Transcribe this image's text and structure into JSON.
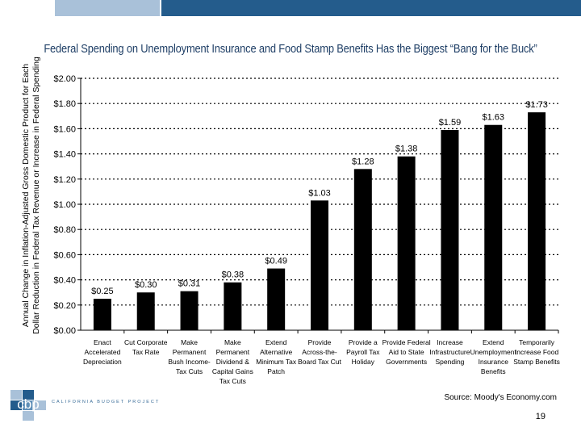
{
  "chart_data": {
    "type": "bar",
    "title": "Federal Spending on Unemployment Insurance and Food Stamp Benefits Has the Biggest “Bang for the Buck”",
    "ylabel_line1": "Annual Change in Inflation-Adjusted Gross Domestic Product for Each",
    "ylabel_line2": "Dollar Reduction in Federal Tax Revenue or Increase in Federal Spending",
    "xlabel": "",
    "ylim": [
      0,
      2.0
    ],
    "yticks": [
      "$0.00",
      "$0.20",
      "$0.40",
      "$0.60",
      "$0.80",
      "$1.00",
      "$1.20",
      "$1.40",
      "$1.60",
      "$1.80",
      "$2.00"
    ],
    "grid": true,
    "categories": [
      [
        "Enact",
        "Accelerated",
        "Depreciation"
      ],
      [
        "Cut Corporate",
        "Tax Rate"
      ],
      [
        "Make",
        "Permanent",
        "Bush Income-",
        "Tax Cuts"
      ],
      [
        "Make",
        "Permanent",
        "Dividend &",
        "Capital Gains",
        "Tax Cuts"
      ],
      [
        "Extend",
        "Alternative",
        "Minimum Tax",
        "Patch"
      ],
      [
        "Provide",
        "Across-the-",
        "Board Tax Cut"
      ],
      [
        "Provide a",
        "Payroll Tax",
        "Holiday"
      ],
      [
        "Provide Federal",
        "Aid to State",
        "Governments"
      ],
      [
        "Increase",
        "Infrastructure",
        "Spending"
      ],
      [
        "Extend",
        "Unemployment",
        "Insurance",
        "Benefits"
      ],
      [
        "Temporarily",
        "Increase Food",
        "Stamp Benefits"
      ]
    ],
    "values": [
      0.25,
      0.3,
      0.31,
      0.38,
      0.49,
      1.03,
      1.28,
      1.38,
      1.59,
      1.63,
      1.73
    ],
    "value_labels": [
      "$0.25",
      "$0.30",
      "$0.31",
      "$0.38",
      "$0.49",
      "$1.03",
      "$1.28",
      "$1.38",
      "$1.59",
      "$1.63",
      "$1.73"
    ],
    "bar_color": "#000000"
  },
  "footer": {
    "logo_mark": "cbp",
    "logo_text": "CALIFORNIA BUDGET PROJECT",
    "source": "Source: Moody's Economy.com",
    "page_number": "19"
  },
  "colors": {
    "accent_dark": "#245c8c",
    "accent_light": "#a9c1d9",
    "title": "#1f3f66"
  }
}
